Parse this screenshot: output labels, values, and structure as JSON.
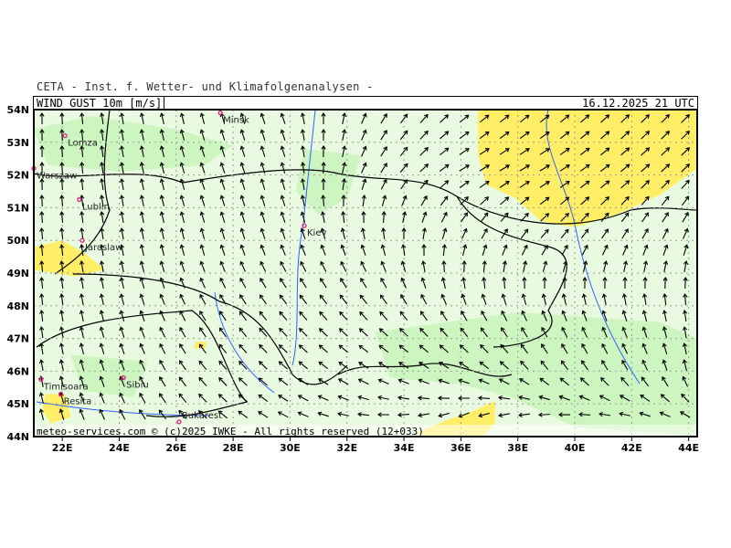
{
  "header": {
    "institute": "CETA - Inst. f. Wetter- und Klimafolgenanalysen -",
    "parameter": "WIND_GUST_10m_[m/s]",
    "valid_time": "16.12.2025 21 UTC"
  },
  "footer": {
    "copyright": "meteo-services.com © (c)2025 IWKE - All rights reserved (12+033)"
  },
  "map": {
    "lon_range": [
      21,
      44.3
    ],
    "lat_range": [
      44,
      54
    ],
    "lon_ticks": [
      "22E",
      "24E",
      "26E",
      "28E",
      "30E",
      "32E",
      "34E",
      "36E",
      "38E",
      "40E",
      "42E",
      "44E"
    ],
    "lat_ticks": [
      "54N",
      "53N",
      "52N",
      "51N",
      "50N",
      "49N",
      "48N",
      "47N",
      "46N",
      "45N",
      "44N"
    ],
    "colors": {
      "base": "#e8fbe0",
      "light_green": "#ccf5c0",
      "yellow": "#ffee66",
      "orange": "#f5c842",
      "border": "#000000",
      "rivers": "#3060ff",
      "grid": "#999999"
    },
    "yellow_areas": [
      [
        [
          36.6,
          54
        ],
        [
          44.3,
          54
        ],
        [
          44.3,
          52.2
        ],
        [
          43,
          51.4
        ],
        [
          41.5,
          50.8
        ],
        [
          40,
          50.4
        ],
        [
          38.8,
          50.6
        ],
        [
          37.9,
          51.3
        ],
        [
          36.9,
          51.7
        ],
        [
          36.6,
          52.6
        ]
      ],
      [
        [
          21,
          49.8
        ],
        [
          22,
          50
        ],
        [
          22.8,
          49.6
        ],
        [
          23.5,
          49.1
        ],
        [
          22.4,
          48.9
        ],
        [
          21,
          49.1
        ]
      ],
      [
        [
          21.4,
          45.3
        ],
        [
          22.1,
          45.3
        ],
        [
          22.3,
          44.6
        ],
        [
          21.6,
          44.4
        ],
        [
          21.3,
          44.8
        ]
      ],
      [
        [
          34.4,
          44.1
        ],
        [
          35.5,
          44.5
        ],
        [
          36.5,
          44.8
        ],
        [
          37.2,
          45.1
        ],
        [
          37.2,
          44.4
        ],
        [
          36.8,
          44
        ],
        [
          34.8,
          44
        ]
      ],
      [
        [
          26.7,
          46.9
        ],
        [
          27.1,
          46.9
        ],
        [
          27.0,
          46.7
        ],
        [
          26.6,
          46.7
        ]
      ]
    ],
    "light_areas": [
      [
        [
          21,
          53.4
        ],
        [
          23,
          53.8
        ],
        [
          26,
          53.4
        ],
        [
          28,
          52.9
        ],
        [
          27,
          52.3
        ],
        [
          24,
          52.1
        ],
        [
          21.5,
          52.3
        ]
      ],
      [
        [
          30.5,
          52.8
        ],
        [
          32.5,
          52.6
        ],
        [
          32,
          51.3
        ],
        [
          31,
          50.8
        ],
        [
          30.2,
          51.5
        ]
      ],
      [
        [
          33,
          47.2
        ],
        [
          38,
          47.8
        ],
        [
          43,
          47.5
        ],
        [
          44.3,
          47
        ],
        [
          44.3,
          44
        ],
        [
          40,
          44.3
        ],
        [
          37.8,
          45.2
        ],
        [
          36,
          45.6
        ],
        [
          33.5,
          45.8
        ]
      ],
      [
        [
          22.3,
          46.5
        ],
        [
          25,
          46.3
        ],
        [
          24.5,
          45.2
        ],
        [
          22.7,
          45.4
        ]
      ]
    ],
    "cities": [
      {
        "name": "Minsk",
        "lon": 27.55,
        "lat": 53.9
      },
      {
        "name": "Lomza",
        "lon": 22.1,
        "lat": 53.2
      },
      {
        "name": "Warszaw",
        "lon": 21.0,
        "lat": 52.2
      },
      {
        "name": "Lublin",
        "lon": 22.6,
        "lat": 51.25
      },
      {
        "name": "Jaroslaw",
        "lon": 22.7,
        "lat": 50.0
      },
      {
        "name": "Kiev",
        "lon": 30.5,
        "lat": 50.45
      },
      {
        "name": "Timisoara",
        "lon": 21.25,
        "lat": 45.75
      },
      {
        "name": "Resita",
        "lon": 21.95,
        "lat": 45.3
      },
      {
        "name": "Sibiu",
        "lon": 24.15,
        "lat": 45.8
      },
      {
        "name": "Bukarest",
        "lon": 26.1,
        "lat": 44.45
      }
    ],
    "wind_direction_toward_deg": {
      "note_rows_lat": [
        54,
        52,
        50,
        48,
        46,
        44
      ],
      "cols_lon": [
        21,
        24,
        27,
        30,
        33,
        36,
        39,
        42,
        44.3
      ],
      "rows": [
        [
          0,
          350,
          345,
          340,
          30,
          50,
          50,
          45,
          45
        ],
        [
          0,
          350,
          340,
          345,
          30,
          60,
          60,
          50,
          45
        ],
        [
          355,
          350,
          345,
          340,
          345,
          20,
          40,
          30,
          20
        ],
        [
          355,
          345,
          330,
          320,
          320,
          335,
          340,
          345,
          355
        ],
        [
          350,
          340,
          320,
          310,
          300,
          300,
          320,
          330,
          350
        ],
        [
          345,
          330,
          310,
          290,
          260,
          225,
          240,
          260,
          280
        ]
      ]
    }
  }
}
